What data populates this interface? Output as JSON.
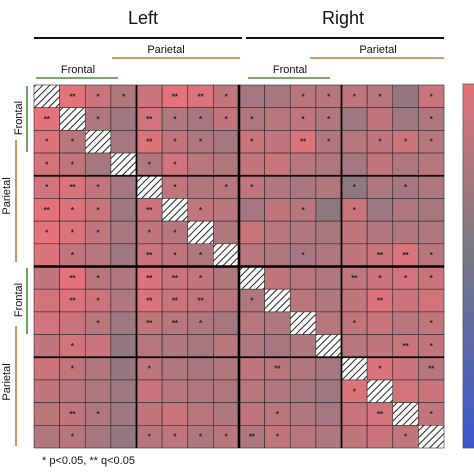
{
  "chart_data": {
    "type": "heatmap",
    "title": "",
    "hemispheres": [
      "Left",
      "Right"
    ],
    "region_labels": {
      "frontal": "Frontal",
      "parietal": "Parietal"
    },
    "n": 16,
    "diagonal": "hatched",
    "blocks": [
      "Left Frontal",
      "Left Parietal",
      "Right Frontal",
      "Right Parietal"
    ],
    "block_boundaries": [
      4,
      8,
      12
    ],
    "sig_legend": "* p<0.05, ** q<0.05",
    "colormap": {
      "high": "#e4737b",
      "mid": "#7a7a80",
      "low": "#3b57d4"
    },
    "values": [
      [
        0,
        0.6,
        0.45,
        0.3,
        0.45,
        0.6,
        0.55,
        0.4,
        0.25,
        0.25,
        0.35,
        0.35,
        0.4,
        0.35,
        0.15,
        0.45
      ],
      [
        0.6,
        0,
        0.3,
        0.2,
        0.5,
        0.3,
        0.25,
        0.4,
        0.3,
        0.35,
        0.4,
        0.3,
        0.2,
        0.4,
        0.2,
        0.3
      ],
      [
        0.55,
        0.35,
        0,
        0.25,
        0.55,
        0.4,
        0.3,
        0.25,
        0.45,
        0.4,
        0.55,
        0.3,
        0.35,
        0.4,
        0.45,
        0.35
      ],
      [
        0.5,
        0.4,
        0.25,
        0,
        0.3,
        0.5,
        0.35,
        0.3,
        0.4,
        0.45,
        0.35,
        0.3,
        0.25,
        0.4,
        0.3,
        0.35
      ],
      [
        0.5,
        0.55,
        0.4,
        0.25,
        0,
        0.4,
        0.3,
        0.35,
        0.4,
        0.3,
        0.25,
        0.3,
        0.1,
        0.3,
        0.25,
        0.3
      ],
      [
        0.6,
        0.55,
        0.45,
        0.2,
        0.45,
        0,
        0.4,
        0.35,
        0.25,
        0.4,
        0.35,
        0.1,
        0.45,
        0.2,
        0.3,
        0.25
      ],
      [
        0.6,
        0.55,
        0.4,
        0.25,
        0.4,
        0.35,
        0,
        0.3,
        0.45,
        0.35,
        0.3,
        0.25,
        0.4,
        0.3,
        0.3,
        0.3
      ],
      [
        0.55,
        0.4,
        0.35,
        0.2,
        0.45,
        0.4,
        0.3,
        0,
        0.35,
        0.3,
        0.25,
        0.3,
        0.4,
        0.45,
        0.55,
        0.35
      ],
      [
        0.4,
        0.6,
        0.35,
        0.3,
        0.55,
        0.45,
        0.4,
        0.3,
        0,
        0.4,
        0.35,
        0.3,
        0.4,
        0.45,
        0.5,
        0.45
      ],
      [
        0.5,
        0.55,
        0.45,
        0.3,
        0.55,
        0.45,
        0.4,
        0.35,
        0.3,
        0,
        0.35,
        0.3,
        0.4,
        0.55,
        0.45,
        0.5
      ],
      [
        0.5,
        0.45,
        0.35,
        0.2,
        0.4,
        0.35,
        0.3,
        0.25,
        0.35,
        0.3,
        0,
        0.35,
        0.4,
        0.45,
        0.35,
        0.4
      ],
      [
        0.4,
        0.5,
        0.45,
        0.15,
        0.35,
        0.3,
        0.25,
        0.35,
        0.3,
        0.25,
        0.3,
        0,
        0.35,
        0.4,
        0.45,
        0.4
      ],
      [
        0.45,
        0.4,
        0.3,
        0.15,
        0.4,
        0.3,
        0.25,
        0.3,
        0.4,
        0.35,
        0.3,
        0.25,
        0,
        0.55,
        0.45,
        0.35
      ],
      [
        0.4,
        0.35,
        0.3,
        0.2,
        0.45,
        0.35,
        0.3,
        0.3,
        0.35,
        0.3,
        0.25,
        0.2,
        0.55,
        0,
        0.5,
        0.45
      ],
      [
        0.35,
        0.4,
        0.3,
        0.2,
        0.4,
        0.45,
        0.35,
        0.3,
        0.4,
        0.35,
        0.3,
        0.25,
        0.45,
        0.5,
        0,
        0.4
      ],
      [
        0.3,
        0.35,
        0.25,
        0.15,
        0.35,
        0.4,
        0.3,
        0.35,
        0.3,
        0.4,
        0.35,
        0.3,
        0.4,
        0.45,
        0.4,
        0
      ]
    ],
    "significance": [
      [
        "",
        "**",
        "*",
        "*",
        "",
        "**",
        "**",
        "*",
        "",
        "",
        "*",
        "*",
        "*",
        "*",
        "",
        "*"
      ],
      [
        "**",
        "",
        "*",
        "",
        "**",
        "*",
        "*",
        "*",
        "*",
        "",
        "*",
        "*",
        "",
        "",
        "",
        "*"
      ],
      [
        "*",
        "*",
        "",
        "",
        "**",
        "*",
        "*",
        "",
        "*",
        "",
        "**",
        "*",
        "",
        "*",
        "*",
        "*"
      ],
      [
        "*",
        "*",
        "",
        "",
        "*",
        "*",
        "",
        "",
        "",
        "",
        "",
        "",
        "",
        "",
        "",
        ""
      ],
      [
        "*",
        "**",
        "*",
        "",
        "",
        "*",
        "",
        "*",
        "*",
        "",
        "",
        "",
        "*",
        "",
        "*",
        ""
      ],
      [
        "**",
        "*",
        "*",
        "",
        "**",
        "",
        "*",
        "",
        "",
        "",
        "*",
        "",
        "*",
        "",
        "",
        ""
      ],
      [
        "*",
        "*",
        "*",
        "",
        "*",
        "*",
        "",
        "",
        "",
        "",
        "",
        "",
        "",
        "",
        "",
        ""
      ],
      [
        "",
        "*",
        "",
        "",
        "**",
        "*",
        "*",
        "",
        "",
        "",
        "*",
        "",
        "",
        "**",
        "**",
        "*"
      ],
      [
        "",
        "**",
        "*",
        "",
        "**",
        "**",
        "*",
        "",
        "",
        "",
        "",
        "",
        "**",
        "*",
        "*",
        "*"
      ],
      [
        "",
        "**",
        "*",
        "",
        "**",
        "**",
        "**",
        "",
        "*",
        "",
        "",
        "",
        "",
        "**",
        "",
        ""
      ],
      [
        "",
        "",
        "*",
        "",
        "**",
        "**",
        "*",
        "",
        "",
        "",
        "",
        "",
        "*",
        "",
        "",
        "*"
      ],
      [
        "",
        "*",
        "",
        "",
        "",
        "",
        "",
        "",
        "",
        "",
        "",
        "",
        "",
        "",
        "**",
        "*"
      ],
      [
        "",
        "*",
        "",
        "",
        "*",
        "",
        "",
        "",
        "",
        "**",
        "",
        "",
        "",
        "*",
        "",
        "**"
      ],
      [
        "",
        "",
        "",
        "",
        "",
        "",
        "",
        "",
        "",
        "",
        "",
        "",
        "*",
        "",
        "",
        ""
      ],
      [
        "",
        "**",
        "*",
        "",
        "",
        "",
        "",
        "",
        "",
        "*",
        "",
        "",
        "",
        "**",
        "",
        "*"
      ],
      [
        "",
        "*",
        "",
        "",
        "*",
        "*",
        "*",
        "*",
        "**",
        "*",
        "",
        "",
        "",
        "",
        "*",
        ""
      ]
    ]
  }
}
